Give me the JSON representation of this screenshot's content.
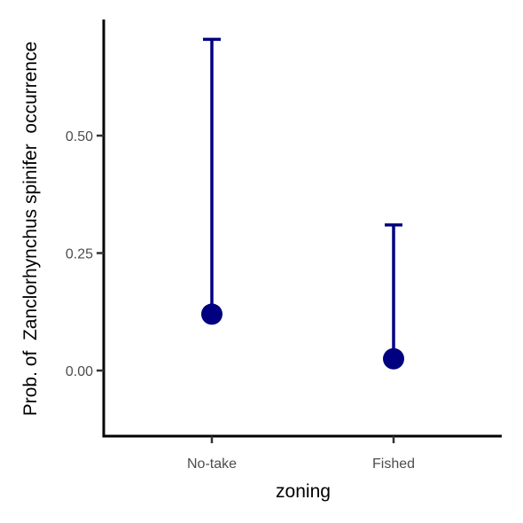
{
  "chart_data": {
    "type": "scatter",
    "xlabel": "zoning",
    "ylabel": "Prob. of  Zanclorhynchus spinifer  occurrence",
    "categories": [
      "No-take",
      "Fished"
    ],
    "yticks": [
      0.0,
      0.25,
      0.5
    ],
    "ytick_labels": [
      "0.00",
      "0.25",
      "0.50"
    ],
    "ylim": [
      -0.14,
      0.75
    ],
    "points": [
      {
        "category": "No-take",
        "estimate": 0.12,
        "upper": 0.705
      },
      {
        "category": "Fished",
        "estimate": 0.025,
        "upper": 0.31
      }
    ],
    "colors": {
      "series": "#000080",
      "axis": "#000000"
    },
    "grid": false,
    "legend": "none"
  }
}
